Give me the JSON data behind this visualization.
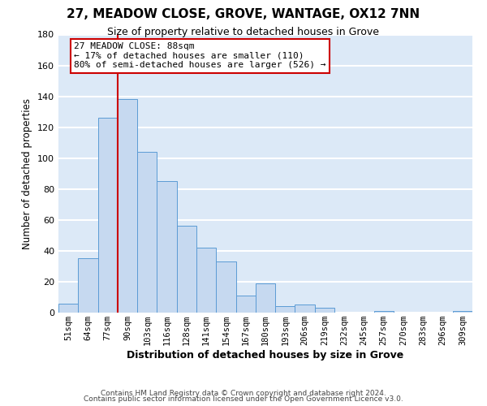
{
  "title": "27, MEADOW CLOSE, GROVE, WANTAGE, OX12 7NN",
  "subtitle": "Size of property relative to detached houses in Grove",
  "xlabel": "Distribution of detached houses by size in Grove",
  "ylabel": "Number of detached properties",
  "bar_labels": [
    "51sqm",
    "64sqm",
    "77sqm",
    "90sqm",
    "103sqm",
    "116sqm",
    "128sqm",
    "141sqm",
    "154sqm",
    "167sqm",
    "180sqm",
    "193sqm",
    "206sqm",
    "219sqm",
    "232sqm",
    "245sqm",
    "257sqm",
    "270sqm",
    "283sqm",
    "296sqm",
    "309sqm"
  ],
  "bar_values": [
    6,
    35,
    126,
    138,
    104,
    85,
    56,
    42,
    33,
    11,
    19,
    4,
    5,
    3,
    0,
    0,
    1,
    0,
    0,
    0,
    1
  ],
  "bar_color": "#c6d9f0",
  "bar_edge_color": "#5b9bd5",
  "vline_color": "#cc0000",
  "annotation_text": "27 MEADOW CLOSE: 88sqm\n← 17% of detached houses are smaller (110)\n80% of semi-detached houses are larger (526) →",
  "annotation_box_edgecolor": "#cc0000",
  "annotation_box_facecolor": "white",
  "ylim": [
    0,
    180
  ],
  "yticks": [
    0,
    20,
    40,
    60,
    80,
    100,
    120,
    140,
    160,
    180
  ],
  "footer1": "Contains HM Land Registry data © Crown copyright and database right 2024.",
  "footer2": "Contains public sector information licensed under the Open Government Licence v3.0.",
  "background_color": "#dce9f7",
  "grid_color": "white",
  "title_fontsize": 11,
  "subtitle_fontsize": 9,
  "annotation_fontsize": 8,
  "vline_xindex": 3
}
